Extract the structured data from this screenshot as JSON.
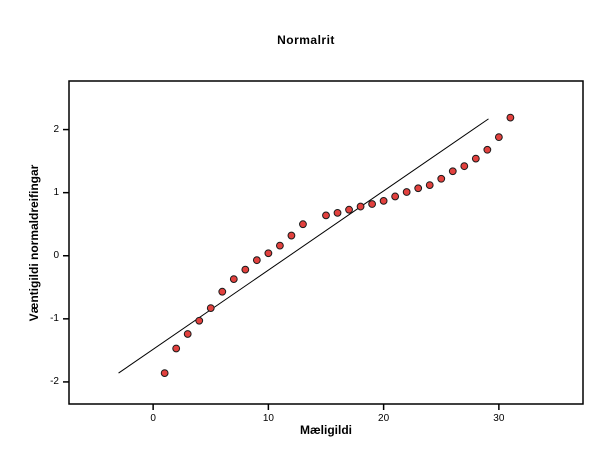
{
  "chart_data": {
    "type": "scatter",
    "title": "Normalrit",
    "xlabel": "Mæligildi",
    "ylabel": "Væntigildi normaldreifingar",
    "xlim": [
      -7.3,
      37.3
    ],
    "ylim": [
      -2.35,
      2.77
    ],
    "x_ticks": [
      0,
      10,
      20,
      30
    ],
    "y_ticks": [
      2,
      1,
      0,
      -1,
      -2
    ],
    "grid": false,
    "legend": "none",
    "series": [
      {
        "name": "observations",
        "marker": "filled-circle",
        "points": [
          [
            1,
            -1.86
          ],
          [
            2,
            -1.47
          ],
          [
            3,
            -1.24
          ],
          [
            4,
            -1.03
          ],
          [
            5,
            -0.83
          ],
          [
            6,
            -0.57
          ],
          [
            7,
            -0.37
          ],
          [
            8,
            -0.22
          ],
          [
            9,
            -0.07
          ],
          [
            10,
            0.04
          ],
          [
            11,
            0.16
          ],
          [
            12,
            0.32
          ],
          [
            13,
            0.5
          ],
          [
            15,
            0.64
          ],
          [
            16,
            0.68
          ],
          [
            17,
            0.73
          ],
          [
            18,
            0.78
          ],
          [
            19,
            0.82
          ],
          [
            20,
            0.87
          ],
          [
            21,
            0.94
          ],
          [
            22,
            1.01
          ],
          [
            23,
            1.07
          ],
          [
            24,
            1.12
          ],
          [
            25,
            1.22
          ],
          [
            26,
            1.34
          ],
          [
            27,
            1.42
          ],
          [
            28,
            1.54
          ],
          [
            29,
            1.68
          ],
          [
            30,
            1.88
          ],
          [
            31,
            2.19
          ]
        ]
      }
    ],
    "fit_line": {
      "x1": -3.0,
      "y1": -1.86,
      "x2": 29.1,
      "y2": 2.17
    },
    "colors": {
      "marker_fill": "#e2413e",
      "marker_stroke": "#1a1a1a",
      "line": "#000000",
      "axis": "#000000",
      "background": "#ffffff",
      "text": "#000000"
    }
  }
}
